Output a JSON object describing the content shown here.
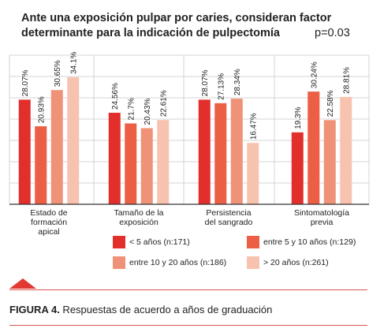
{
  "title_line1": "Ante una exposición pulpar por caries, consideran factor",
  "title_line2": "determinante para la indicación de pulpectomía",
  "p_value": "p=0.03",
  "caption": {
    "label": "FIGURA 4.",
    "text": " Respuestas de acuerdo a años de graduación"
  },
  "colors": {
    "accent": "#e03a33"
  },
  "chart_data": {
    "type": "bar",
    "categories": [
      [
        "Estado de",
        "formación",
        "apical"
      ],
      [
        "Tamaño de la",
        "exposición"
      ],
      [
        "Persistencia",
        "del sangrado"
      ],
      [
        "Sintomatología",
        "previa"
      ]
    ],
    "ylim": [
      0,
      40
    ],
    "grid": true,
    "series": [
      {
        "name": "< 5 años (n:171)",
        "color": "#e32f2c",
        "values": [
          28.07,
          24.56,
          28.07,
          19.3
        ],
        "labels": [
          "28.07%",
          "24.56%",
          "28.07%",
          "19.3%"
        ]
      },
      {
        "name": "entre 5 y 10 años (n:129)",
        "color": "#ec5f45",
        "values": [
          20.93,
          21.7,
          27.13,
          30.24
        ],
        "labels": [
          "20.93%",
          "21.7%",
          "27.13%",
          "30.24%"
        ]
      },
      {
        "name": "entre 10 y 20 años (n:186)",
        "color": "#f09278",
        "values": [
          30.65,
          20.43,
          28.34,
          22.58
        ],
        "labels": [
          "30.65%",
          "20.43%",
          "28.34%",
          "22.58%"
        ]
      },
      {
        "name": "> 20 años (n:261)",
        "color": "#f7c3ae",
        "values": [
          34.1,
          22.61,
          16.47,
          28.81
        ],
        "labels": [
          "34.1%",
          "22.61%",
          "16.47%",
          "28.81%"
        ]
      }
    ],
    "legend_position": "bottom"
  }
}
